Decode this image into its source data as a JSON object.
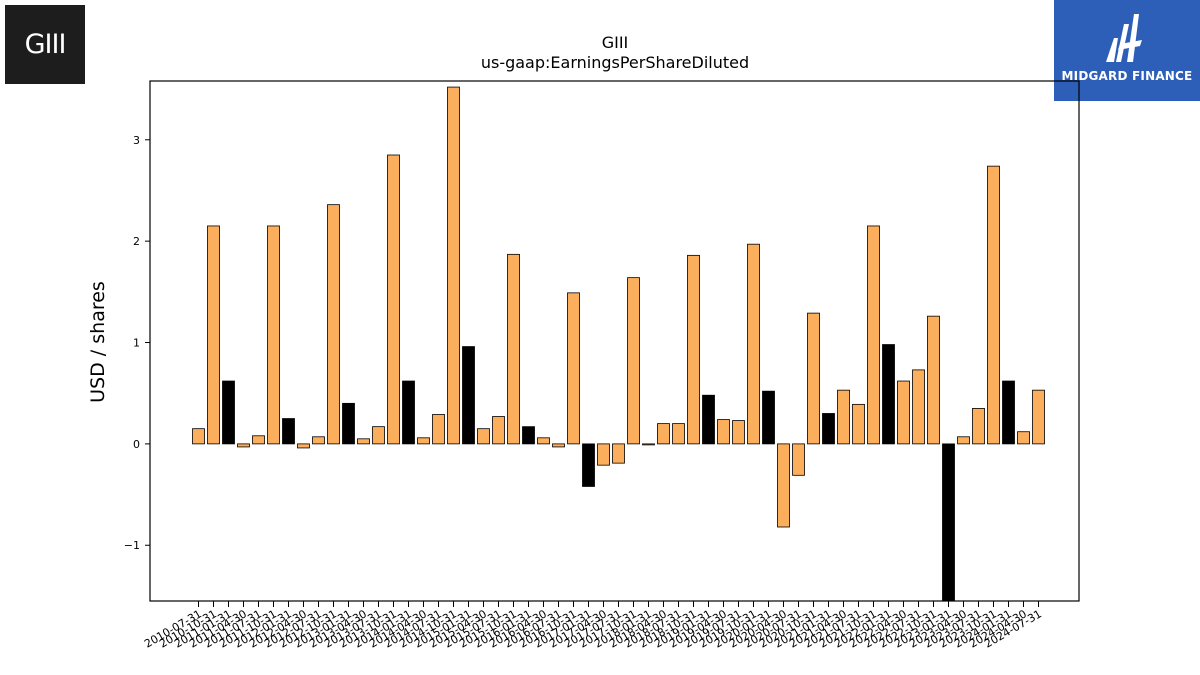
{
  "logo_left_text": "GIII",
  "logo_right_text": "MIDGARD FINANCE",
  "chart_data": {
    "type": "bar",
    "title": "GIII",
    "subtitle": "us-gaap:EarningsPerShareDiluted",
    "ylabel": "USD / shares",
    "xlabel": "",
    "ylim": [
      -1.55,
      3.58
    ],
    "yticks": [
      -1,
      0,
      1,
      2,
      3
    ],
    "ytick_labels": [
      "−1",
      "0",
      "1",
      "2",
      "3"
    ],
    "grid": false,
    "colors": {
      "default": "#fbae5c",
      "highlight": "#000000",
      "edge": "#000000"
    },
    "categories": [
      "2010-07-31",
      "2010-10-31",
      "2011-01-31",
      "2011-04-30",
      "2011-07-31",
      "2011-10-31",
      "2012-01-31",
      "2012-04-30",
      "2012-07-31",
      "2012-10-31",
      "2013-01-31",
      "2013-04-30",
      "2013-07-31",
      "2013-10-31",
      "2014-01-31",
      "2014-04-30",
      "2014-07-31",
      "2014-10-31",
      "2015-01-31",
      "2015-04-30",
      "2015-07-31",
      "2015-10-31",
      "2016-01-31",
      "2016-04-30",
      "2016-07-31",
      "2016-10-31",
      "2017-01-31",
      "2017-04-30",
      "2017-07-31",
      "2017-10-31",
      "2018-01-31",
      "2018-04-30",
      "2018-07-31",
      "2018-10-31",
      "2019-01-31",
      "2019-04-30",
      "2019-07-31",
      "2019-10-31",
      "2020-01-31",
      "2020-04-30",
      "2020-07-31",
      "2020-10-31",
      "2021-01-31",
      "2021-04-30",
      "2021-07-31",
      "2021-10-31",
      "2022-01-31",
      "2022-04-30",
      "2022-07-31",
      "2022-10-31",
      "2023-01-31",
      "2023-04-30",
      "2023-07-31",
      "2023-10-31",
      "2024-01-31",
      "2024-04-30",
      "2024-07-31"
    ],
    "visible_tick_labels": [
      "2010-07-31",
      "2010-10-31",
      "2011-01-31",
      "2011-04-30",
      "2011-07-31",
      "2011-10-31",
      "2012-01-31",
      "2012-04-30",
      "2012-07-31",
      "2012-10-31",
      "2013-01-31",
      "2013-04-30",
      "2013-07-31",
      "2013-10-31",
      "2014-01-31",
      "2014-04-30",
      "2014-07-31",
      "2014-10-31",
      "2015-01-31",
      "2015-04-30",
      "2015-07-31",
      "2015-10-31",
      "2016-01-31",
      "2016-04-30",
      "2016-07-31",
      "2016-10-31",
      "2017-01-31",
      "2017-04-30",
      "2017-07-31",
      "2017-10-31",
      "2018-01-31",
      "2018-04-30",
      "2018-07-31",
      "2018-10-31",
      "2019-01-31",
      "2019-04-30",
      "2019-07-31",
      "2019-10-31",
      "2020-01-31",
      "2020-04-30",
      "2020-07-31",
      "2020-10-31",
      "2021-01-31",
      "2021-04-30",
      "2021-07-31",
      "2021-10-31",
      "2022-01-31",
      "2022-04-30",
      "2022-07-31",
      "2022-10-31",
      "2023-01-31",
      "2023-04-30",
      "2023-07-31",
      "2023-10-31",
      "2024-01-31",
      "2024-04-30",
      "2024-07-31"
    ],
    "values": [
      0.15,
      2.15,
      0.62,
      -0.03,
      0.08,
      2.15,
      0.25,
      -0.04,
      0.07,
      2.36,
      0.4,
      0.05,
      0.17,
      2.85,
      0.62,
      0.06,
      0.29,
      3.52,
      0.96,
      0.15,
      0.27,
      1.87,
      0.17,
      0.06,
      -0.03,
      1.49,
      -0.42,
      -0.21,
      -0.19,
      1.64,
      -0.01,
      0.2,
      0.2,
      1.86,
      0.48,
      0.24,
      0.23,
      1.97,
      0.52,
      -0.82,
      -0.31,
      1.29,
      0.3,
      0.53,
      0.39,
      2.15,
      0.98,
      0.62,
      0.73,
      1.26,
      -1.55,
      0.07,
      0.35,
      2.74,
      0.62,
      0.12,
      0.53
    ],
    "highlight": [
      false,
      false,
      true,
      false,
      false,
      false,
      true,
      false,
      false,
      false,
      true,
      false,
      false,
      false,
      true,
      false,
      false,
      false,
      true,
      false,
      false,
      false,
      true,
      false,
      false,
      false,
      true,
      false,
      false,
      false,
      false,
      false,
      false,
      false,
      true,
      false,
      false,
      false,
      true,
      false,
      false,
      false,
      true,
      false,
      false,
      false,
      true,
      false,
      false,
      false,
      true,
      false,
      false,
      false,
      true,
      false,
      false
    ]
  }
}
